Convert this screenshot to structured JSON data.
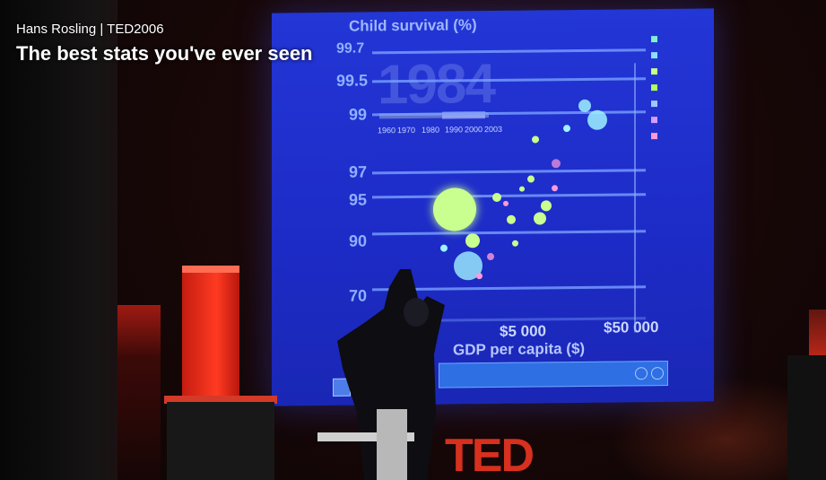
{
  "overlay": {
    "speaker_event": "Hans Rosling | TED2006",
    "talk_title": "The best stats you've ever seen"
  },
  "slide": {
    "title": "Child survival (%)",
    "year": "1984",
    "y_ticks": [
      "99.7",
      "99.5",
      "99",
      "97",
      "95",
      "90",
      "70"
    ],
    "timeline_years": [
      "1960",
      "1970",
      "1980",
      "1990",
      "2000",
      "2003"
    ],
    "x_ticks": [
      "$5 000",
      "$50 000"
    ],
    "x_label": "GDP per capita ($)"
  },
  "stage": {
    "logo_text": "TED"
  },
  "colors": {
    "screen_blue": "#1d2bc6",
    "bubble_green": "#b9ff7a",
    "bubble_cyan": "#8ff3ff",
    "bubble_pink": "#ff9ad8",
    "ted_red": "#d7301f"
  }
}
